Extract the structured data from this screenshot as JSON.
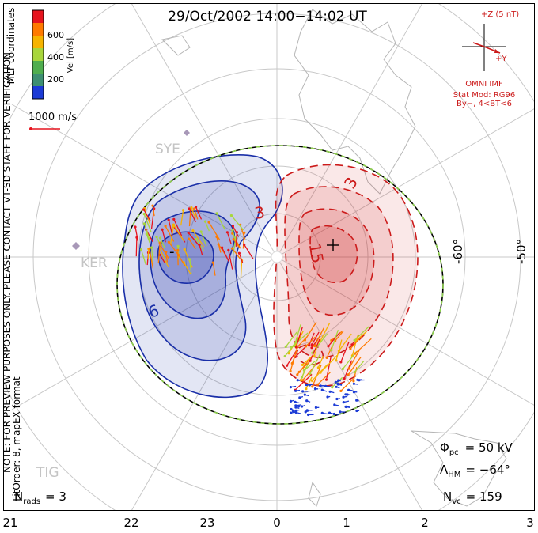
{
  "title": "29/Oct/2002 14:00−14:02 UT",
  "coordinates_label": "MLT coordinates",
  "colorbar": {
    "label": "Vel [m/s]",
    "ticks": [
      "600",
      "400",
      "200"
    ],
    "colors": [
      "#e6141e",
      "#ff7a00",
      "#f6b400",
      "#a8d63c",
      "#4fae4f",
      "#3d8f72",
      "#1c3bd6"
    ]
  },
  "ref_vector_label": "1000 m/s",
  "imf": {
    "z_label": "+Z (5 nT)",
    "y_label": "+Y",
    "source": "OMNI IMF",
    "model": "Stat Mod: RG96",
    "condition": "By−, 4<BT<6"
  },
  "side_note": "NOTE: FOR PREVIEW PURPOSES ONLY. PLEASE CONTACT VT-SD STAFF FOR VERIFICATION.",
  "fit_note": "FitOrder: 8, mapEX format",
  "station_labels": [
    "SYE",
    "KER",
    "TIG"
  ],
  "latitude_labels": [
    "-60°",
    "-50°"
  ],
  "mlt_labels": [
    "21",
    "22",
    "23",
    "0",
    "1",
    "2",
    "3"
  ],
  "contour_labels": {
    "negative": [
      "-",
      "9"
    ],
    "positive": [
      "3",
      "3",
      "15"
    ]
  },
  "stats": {
    "phi_symbol": "Φ",
    "phi_sub": "pc",
    "phi_value": "= 50 kV",
    "lambda_symbol": "Λ",
    "lambda_sub": "HM",
    "lambda_value": "= −64°",
    "nrads_symbol": "N",
    "nrads_sub": "rads",
    "nrads_value": "= 3",
    "nvc_symbol": "N",
    "nvc_sub": "vc",
    "nvc_value": "= 159"
  },
  "colors": {
    "negative_potential": "#1a2fa8",
    "positive_potential": "#cc1b1b",
    "hm_boundary_dash": "#8fd14f",
    "annotation_red": "#cc1b1b"
  }
}
